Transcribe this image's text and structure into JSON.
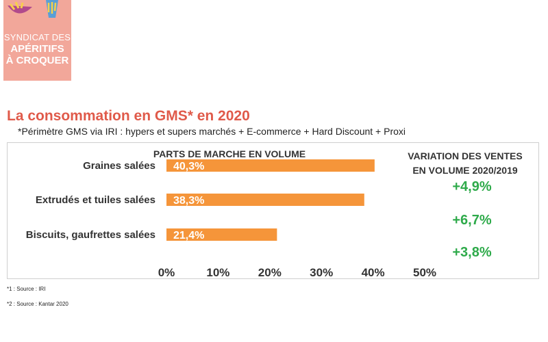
{
  "logo": {
    "line1": "SYNDICAT DES",
    "line2": "APÉRITIFS",
    "line3": "À CROQUER",
    "bg_color": "#f2a79a"
  },
  "header": {
    "title": "La consommation en GMS* en 2020",
    "subtitle": "*Périmètre GMS via IRI : hypers et supers marchés + E-commerce + Hard Discount + Proxi"
  },
  "chart_data": {
    "type": "bar",
    "orientation": "horizontal",
    "title": "PARTS DE MARCHE EN VOLUME",
    "categories": [
      "Graines salées",
      "Extrudés et tuiles salées",
      "Biscuits, gaufrettes salées"
    ],
    "values": [
      40.3,
      38.3,
      21.4
    ],
    "value_labels": [
      "40,3%",
      "38,3%",
      "21,4%"
    ],
    "xlim": [
      0,
      50
    ],
    "xticks": [
      "0%",
      "10%",
      "20%",
      "30%",
      "40%",
      "50%"
    ],
    "grid": false,
    "bar_color": "#f5953a"
  },
  "variation": {
    "title_line1": "VARIATION DES VENTES",
    "title_line2": "EN VOLUME 2020/2019",
    "values": [
      "+4,9%",
      "+6,7%",
      "+3,8%"
    ],
    "color": "#2eaa4a"
  },
  "notes": {
    "note1": "*1 : Source : IRI",
    "note2": "*2 : Source : Kantar 2020"
  }
}
